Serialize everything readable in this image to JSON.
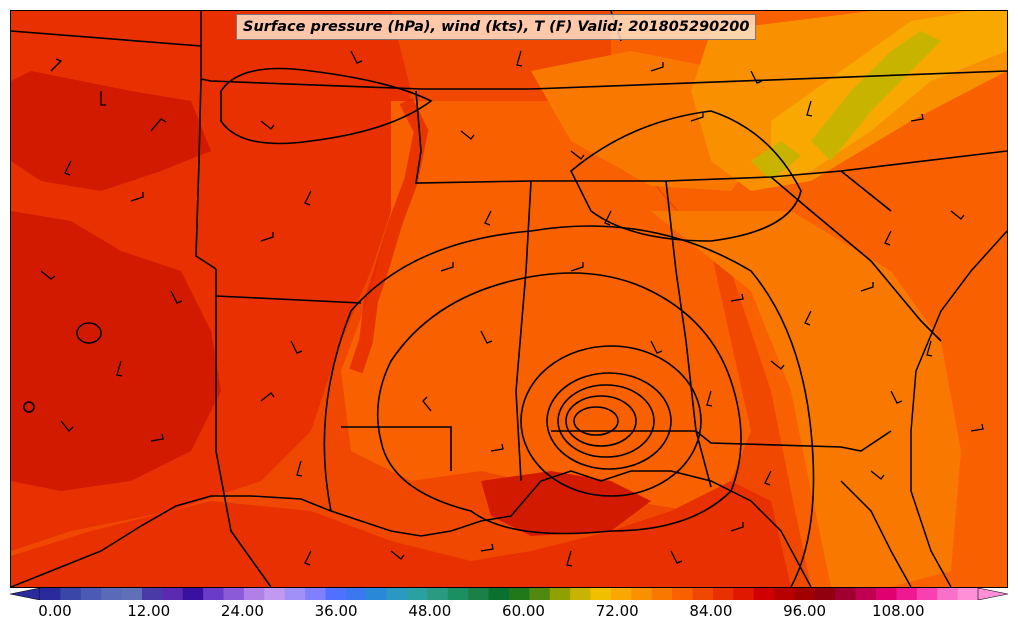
{
  "title": "Surface pressure (hPa), wind (kts), T (F) Valid: 201805290200",
  "colorbar": {
    "ticks": [
      "0.00",
      "12.00",
      "24.00",
      "36.00",
      "48.00",
      "60.00",
      "72.00",
      "84.00",
      "96.00",
      "108.00"
    ],
    "colors": [
      "#2a2a9a",
      "#3a46a8",
      "#4a5ab5",
      "#5a6ab8",
      "#6070b8",
      "#4a3aa8",
      "#5a2ab0",
      "#3a10a0",
      "#6a3ac8",
      "#8a5ad8",
      "#b080e8",
      "#c09af0",
      "#a090f8",
      "#8080ff",
      "#5070ff",
      "#3a78f0",
      "#2a88d8",
      "#2a98c0",
      "#2aa0a0",
      "#2a9a80",
      "#1a9060",
      "#1a8048",
      "#0a7030",
      "#207818",
      "#508810",
      "#90a000",
      "#c8b400",
      "#f0c000",
      "#f8a800",
      "#f89000",
      "#f87800",
      "#f86000",
      "#f04800",
      "#e83000",
      "#e01800",
      "#d00000",
      "#b80000",
      "#a00000",
      "#900010",
      "#a00030",
      "#c00050",
      "#e00070",
      "#f01890",
      "#f840b0",
      "#f870c8",
      "#ff90d8"
    ]
  },
  "map": {
    "field_colors": {
      "warmest": "#d21a00",
      "hot": "#e83000",
      "warm": "#f04800",
      "mild": "#f86000",
      "cooler": "#f87800",
      "cool": "#f89000",
      "coolest": "#f8a800",
      "mountain": "#c8b400"
    }
  }
}
